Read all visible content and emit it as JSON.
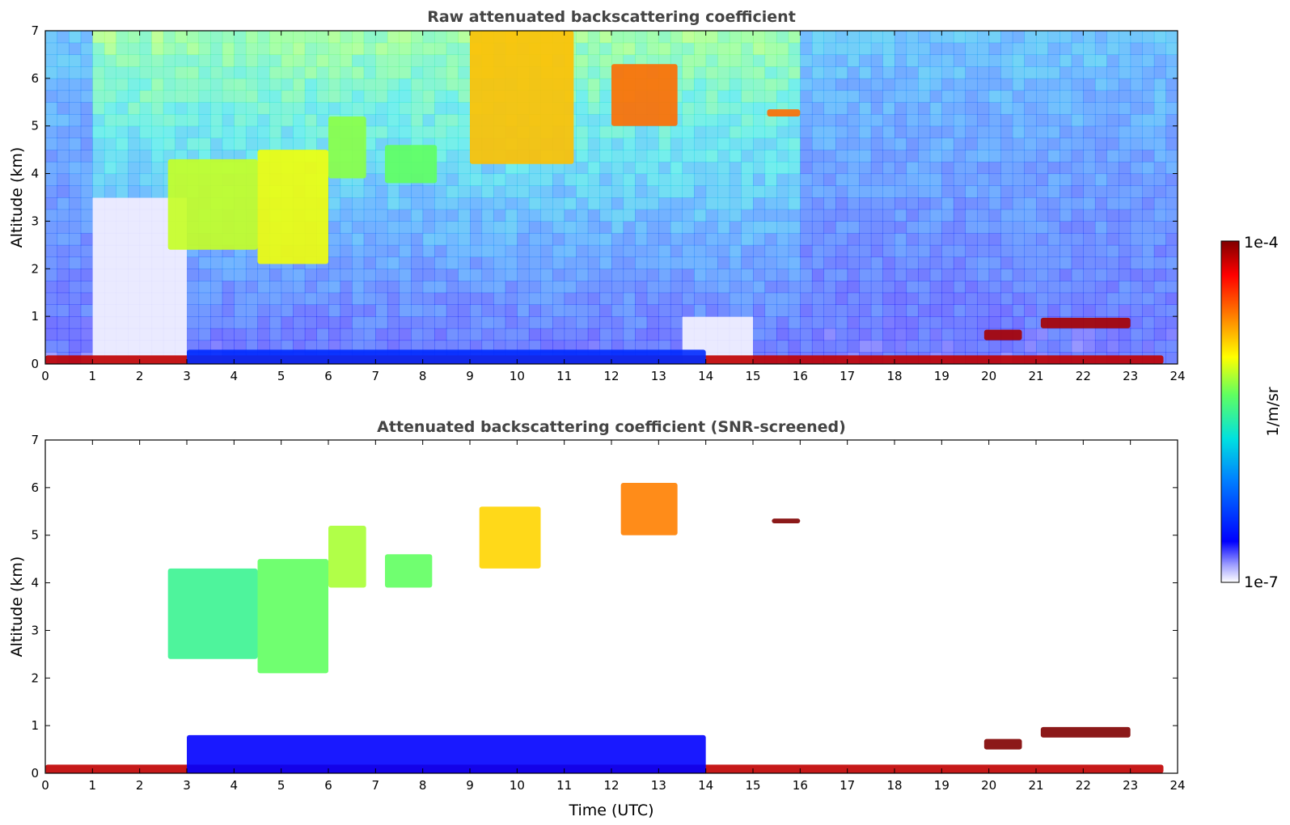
{
  "chart_data": [
    {
      "type": "heatmap",
      "title": "Raw attenuated backscattering coefficient",
      "xlabel": "",
      "ylabel": "Altitude (km)",
      "xlim": [
        0,
        24
      ],
      "ylim": [
        0,
        7
      ],
      "xticks": [
        "0",
        "1",
        "2",
        "3",
        "4",
        "5",
        "6",
        "7",
        "8",
        "9",
        "10",
        "11",
        "12",
        "13",
        "14",
        "15",
        "16",
        "17",
        "18",
        "19",
        "20",
        "21",
        "22",
        "23",
        "24"
      ],
      "yticks": [
        "0",
        "1",
        "2",
        "3",
        "4",
        "5",
        "6",
        "7"
      ],
      "features": [
        {
          "name": "surface-layer",
          "t0": 0,
          "t1": 23.7,
          "z0": 0.0,
          "z1": 0.18,
          "level": 0.95
        },
        {
          "name": "boundary-noise",
          "t0": 3.0,
          "t1": 14.0,
          "z0": 0.0,
          "z1": 0.3,
          "level": 0.18
        },
        {
          "name": "cirrus-band-a",
          "t0": 2.6,
          "t1": 4.5,
          "z0": 2.4,
          "z1": 4.3,
          "level": 0.62
        },
        {
          "name": "cirrus-band-b",
          "t0": 4.5,
          "t1": 6.0,
          "z0": 2.1,
          "z1": 4.5,
          "level": 0.65
        },
        {
          "name": "cirrus-rise",
          "t0": 6.0,
          "t1": 6.8,
          "z0": 3.9,
          "z1": 5.2,
          "level": 0.58
        },
        {
          "name": "cirrus-mid",
          "t0": 7.2,
          "t1": 8.3,
          "z0": 3.8,
          "z1": 4.6,
          "level": 0.55
        },
        {
          "name": "high-cloud-a",
          "t0": 9.0,
          "t1": 11.2,
          "z0": 4.2,
          "z1": 7.0,
          "level": 0.72
        },
        {
          "name": "high-cloud-b",
          "t0": 12.0,
          "t1": 13.4,
          "z0": 5.0,
          "z1": 6.3,
          "level": 0.8
        },
        {
          "name": "thin-layer-c",
          "t0": 15.3,
          "t1": 16.0,
          "z0": 5.2,
          "z1": 5.35,
          "level": 0.8
        },
        {
          "name": "low-cloud-a",
          "t0": 19.9,
          "t1": 20.7,
          "z0": 0.5,
          "z1": 0.72,
          "level": 0.97
        },
        {
          "name": "low-cloud-b",
          "t0": 21.1,
          "t1": 23.0,
          "z0": 0.75,
          "z1": 0.97,
          "level": 0.97
        }
      ]
    },
    {
      "type": "heatmap",
      "title": "Attenuated backscattering coefficient (SNR-screened)",
      "xlabel": "Time (UTC)",
      "ylabel": "Altitude (km)",
      "xlim": [
        0,
        24
      ],
      "ylim": [
        0,
        7
      ],
      "xticks": [
        "0",
        "1",
        "2",
        "3",
        "4",
        "5",
        "6",
        "7",
        "8",
        "9",
        "10",
        "11",
        "12",
        "13",
        "14",
        "15",
        "16",
        "17",
        "18",
        "19",
        "20",
        "21",
        "22",
        "23",
        "24"
      ],
      "yticks": [
        "0",
        "1",
        "2",
        "3",
        "4",
        "5",
        "6",
        "7"
      ],
      "features": [
        {
          "name": "surface-layer",
          "t0": 0,
          "t1": 23.7,
          "z0": 0.0,
          "z1": 0.18,
          "level": 0.95
        },
        {
          "name": "aerosol-layer",
          "t0": 3.0,
          "t1": 14.0,
          "z0": 0.0,
          "z1": 0.8,
          "level": 0.12
        },
        {
          "name": "cirrus-band-a",
          "t0": 2.6,
          "t1": 4.5,
          "z0": 2.4,
          "z1": 4.3,
          "level": 0.5
        },
        {
          "name": "cirrus-band-b",
          "t0": 4.5,
          "t1": 6.0,
          "z0": 2.1,
          "z1": 4.5,
          "level": 0.55
        },
        {
          "name": "cirrus-rise",
          "t0": 6.0,
          "t1": 6.8,
          "z0": 3.9,
          "z1": 5.2,
          "level": 0.6
        },
        {
          "name": "cirrus-mid",
          "t0": 7.2,
          "t1": 8.2,
          "z0": 3.9,
          "z1": 4.6,
          "level": 0.55
        },
        {
          "name": "high-cloud-a",
          "t0": 9.2,
          "t1": 10.5,
          "z0": 4.3,
          "z1": 5.6,
          "level": 0.7
        },
        {
          "name": "high-cloud-b",
          "t0": 12.2,
          "t1": 13.4,
          "z0": 5.0,
          "z1": 6.1,
          "level": 0.78
        },
        {
          "name": "thin-layer-c",
          "t0": 15.4,
          "t1": 16.0,
          "z0": 5.25,
          "z1": 5.35,
          "level": 1.0
        },
        {
          "name": "low-cloud-a",
          "t0": 19.9,
          "t1": 20.7,
          "z0": 0.5,
          "z1": 0.72,
          "level": 1.0
        },
        {
          "name": "low-cloud-b",
          "t0": 21.1,
          "t1": 23.0,
          "z0": 0.75,
          "z1": 0.97,
          "level": 1.0
        }
      ]
    }
  ],
  "colorbar": {
    "max_label": "1e-4",
    "min_label": "1e-7",
    "unit_label": "1/m/sr",
    "colormap": [
      "#ffffff",
      "#0000ff",
      "#00ccff",
      "#40ff80",
      "#ffff00",
      "#ff8000",
      "#ff0000",
      "#800000"
    ]
  }
}
